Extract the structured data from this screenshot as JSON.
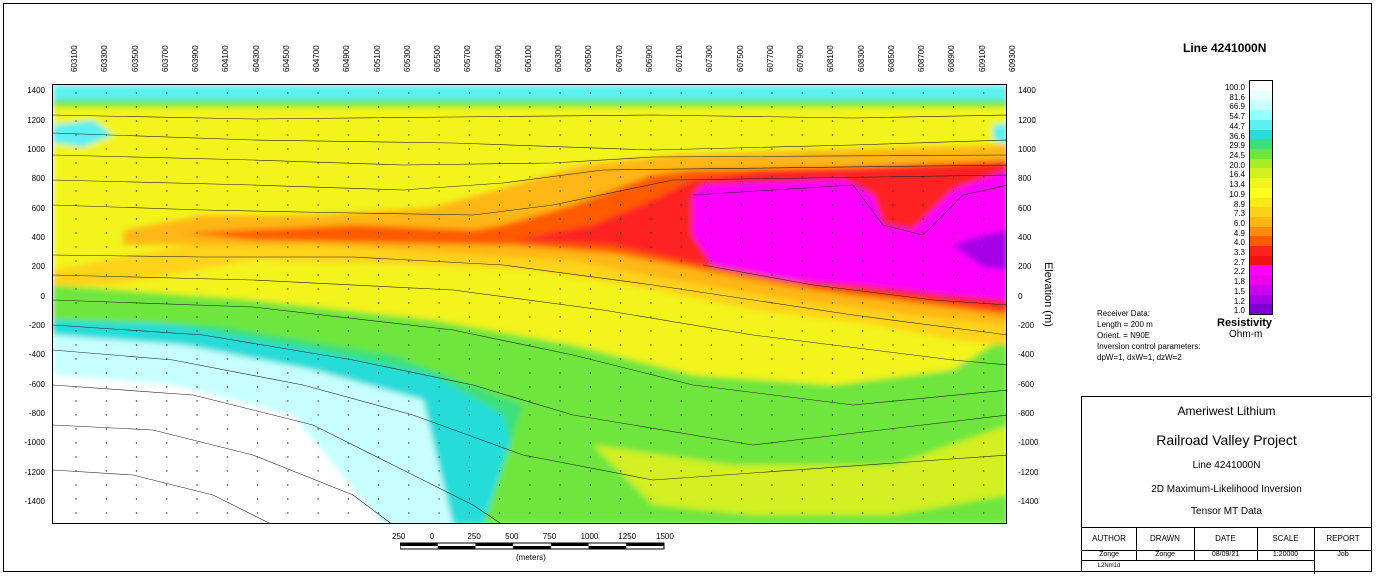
{
  "chart_data": {
    "type": "heatmap",
    "title": "Line 4241000N",
    "ylabel": "Elevation (m)",
    "ylim": [
      -1550,
      1450
    ],
    "x_ticks": [
      "603100",
      "603300",
      "603500",
      "603700",
      "603900",
      "604100",
      "604300",
      "604500",
      "604700",
      "604900",
      "605100",
      "605300",
      "605500",
      "605700",
      "605900",
      "606100",
      "606300",
      "606500",
      "606700",
      "606900",
      "607100",
      "607300",
      "607500",
      "607700",
      "607900",
      "608100",
      "608300",
      "608500",
      "608700",
      "608900",
      "609100",
      "609300"
    ],
    "y_ticks": [
      "1400",
      "1200",
      "1000",
      "800",
      "600",
      "400",
      "200",
      "0",
      "-200",
      "-400",
      "-600",
      "-800",
      "-1000",
      "-1200",
      "-1400"
    ],
    "legend_title": "Resistivity",
    "legend_unit": "Ohm-m",
    "legend_values": [
      "100.0",
      "81.6",
      "66.9",
      "54.7",
      "44.7",
      "36.6",
      "29.9",
      "24.5",
      "20.0",
      "16.4",
      "13.4",
      "10.9",
      "8.9",
      "7.3",
      "6.0",
      "4.9",
      "4.0",
      "3.3",
      "2.7",
      "2.2",
      "1.8",
      "1.5",
      "1.2",
      "1.0"
    ],
    "legend_colors": [
      "#ffffff",
      "#e8ffff",
      "#c8ffff",
      "#96ffff",
      "#5cf0f0",
      "#28dcd8",
      "#3ce07a",
      "#6ee63c",
      "#a8ec28",
      "#d2f020",
      "#f2f41e",
      "#ffff22",
      "#ffe81a",
      "#ffd21a",
      "#ffb614",
      "#ff8c0a",
      "#ff5a00",
      "#ff2020",
      "#ee1212",
      "#ff00ff",
      "#ee00ee",
      "#cc00ee",
      "#a600e6",
      "#7e00d2"
    ],
    "colorscale_notes": "Resistivity decreases downward and to the east; conductive (magenta) body centred near 607700–609300 at 200–800 m"
  },
  "info": {
    "line1": "Receiver Data:",
    "line2": "Length = 200 m",
    "line3": "Orient. = N90E",
    "line4": "Inversion control parameters:",
    "line5": "dpW=1, dxW=1, dzW=2"
  },
  "title_block": {
    "company": "Ameriwest Lithium",
    "project": "Railroad Valley Project",
    "line": "Line 4241000N",
    "method": "2D Maximum-Likelihood Inversion",
    "data": "Tensor MT Data",
    "headers": [
      "AUTHOR",
      "DRAWN",
      "DATE",
      "SCALE",
      "REPORT"
    ],
    "values": [
      "Zonge",
      "Zonge",
      "08/09/21",
      "1:20000",
      "Job"
    ],
    "file": "L2Nm1d"
  },
  "scale_bar": {
    "labels": [
      "250",
      "0",
      "250",
      "500",
      "750",
      "1000",
      "1250",
      "1500"
    ],
    "unit": "(meters)"
  }
}
